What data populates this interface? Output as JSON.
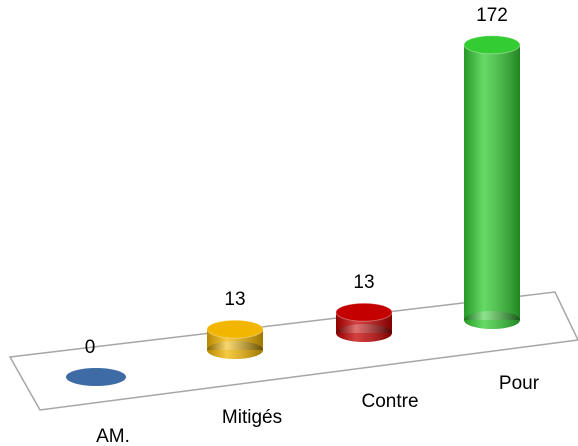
{
  "chart_data": {
    "type": "bar3d",
    "categories": [
      "AM.",
      "Mitigés",
      "Contre",
      "Pour"
    ],
    "values": [
      0,
      13,
      13,
      172
    ],
    "colors": [
      "#3e6aa5",
      "#f2b600",
      "#c40000",
      "#33cc33"
    ]
  }
}
